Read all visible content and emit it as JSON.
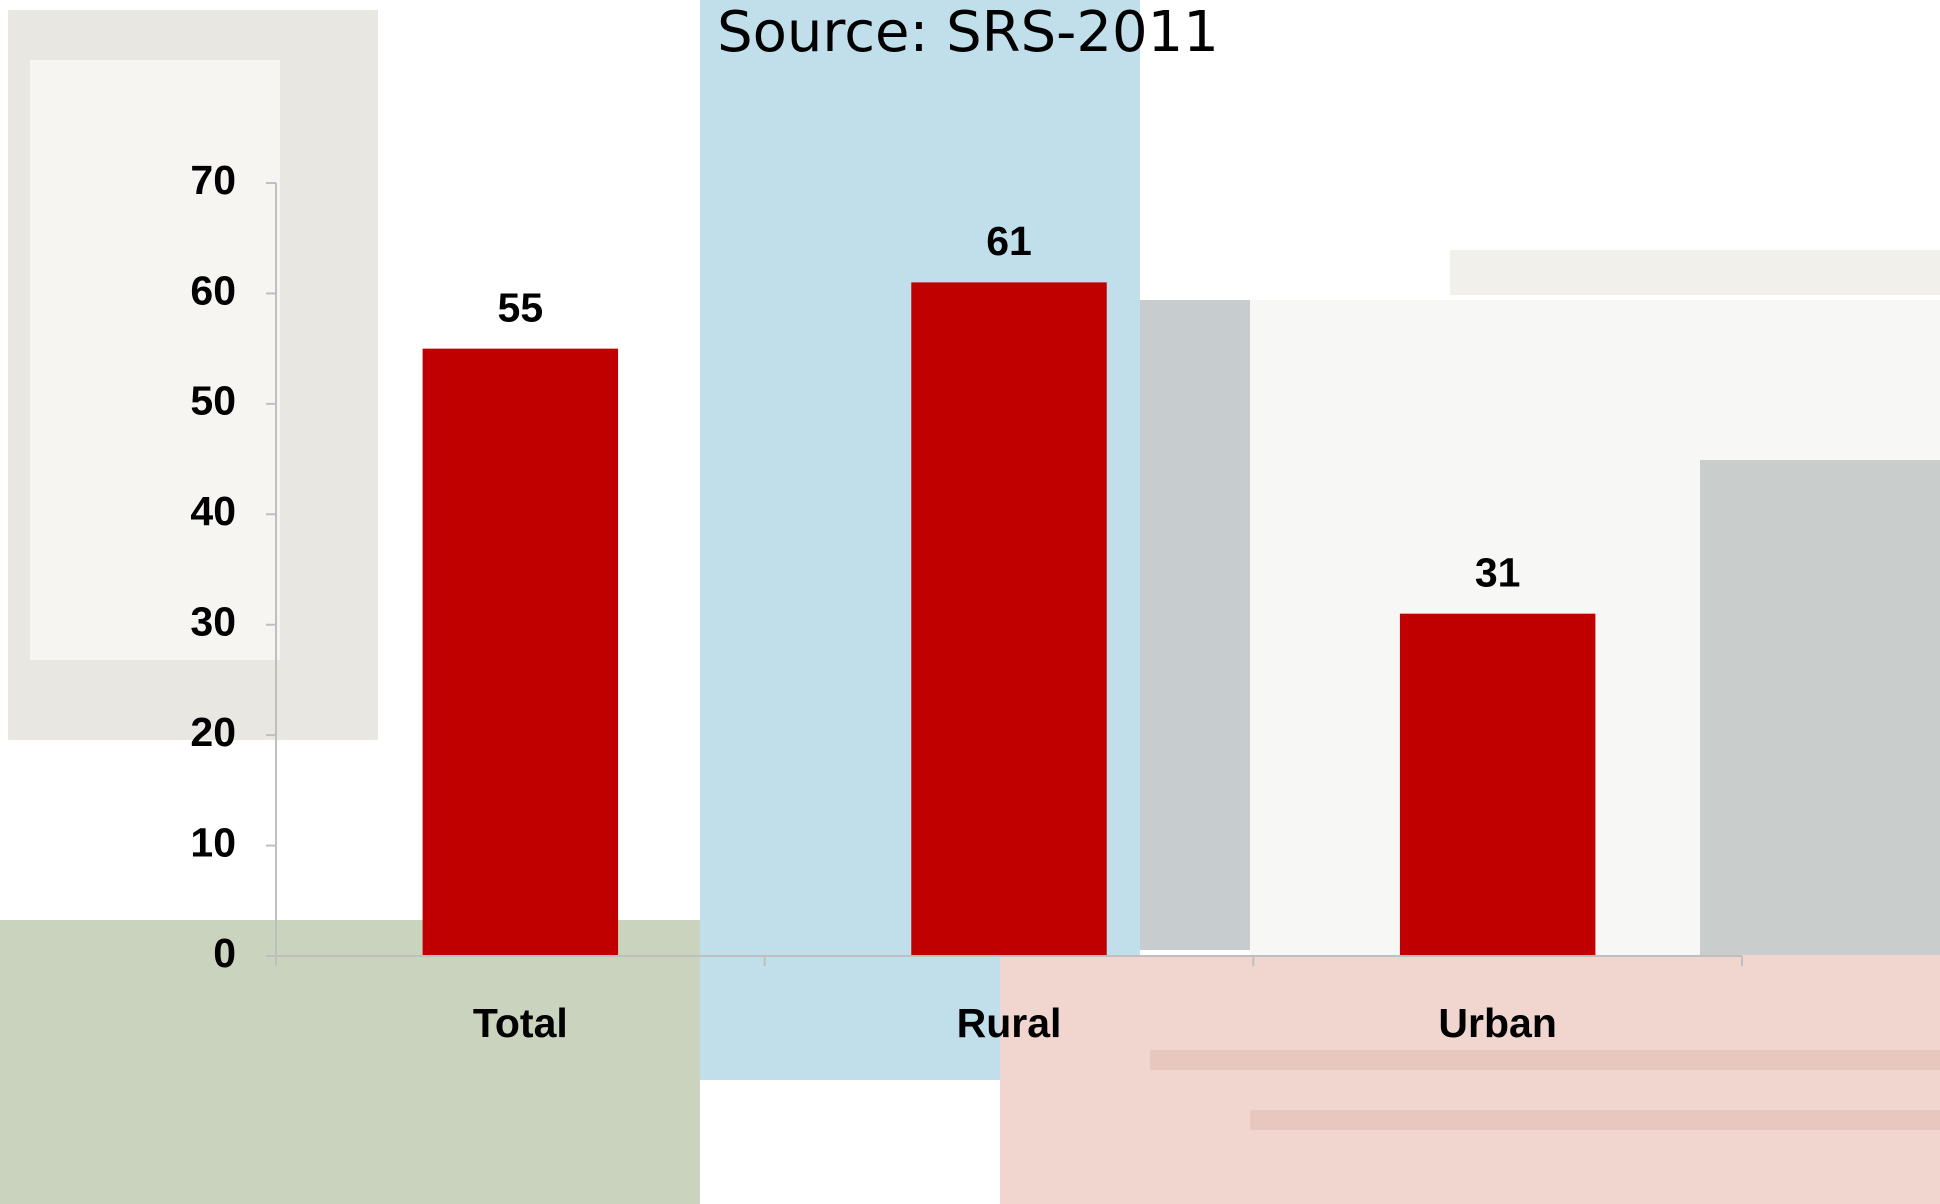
{
  "chart_data": {
    "type": "bar",
    "title": "Source: SRS-2011",
    "categories": [
      "Total",
      "Rural",
      "Urban"
    ],
    "values": [
      55,
      61,
      31
    ],
    "color": "#c00000",
    "ylim": [
      0,
      70
    ],
    "yticks": [
      0,
      10,
      20,
      30,
      40,
      50,
      60,
      70
    ]
  }
}
